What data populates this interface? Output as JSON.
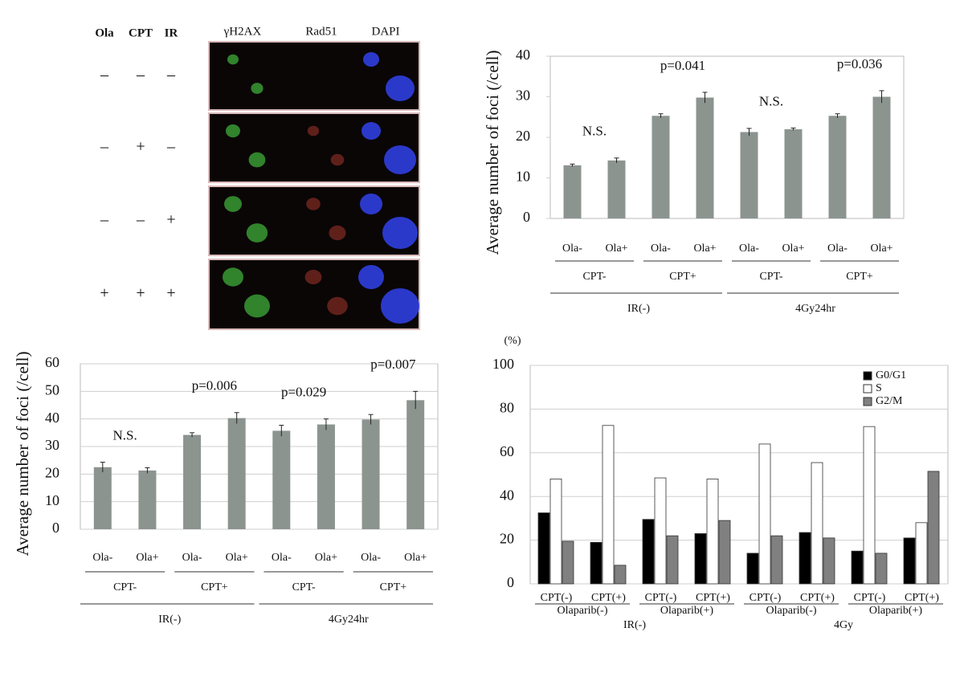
{
  "panel_a": {
    "treatment_headers": [
      "Ola",
      "CPT",
      "IR"
    ],
    "channel_headers": [
      "γH2AX",
      "Rad51",
      "DAPI"
    ],
    "rows": [
      [
        "–",
        "–",
        "–"
      ],
      [
        "–",
        "+",
        "–"
      ],
      [
        "–",
        "–",
        "+"
      ],
      [
        "+",
        "+",
        "+"
      ]
    ]
  },
  "chart_data": [
    {
      "type": "bar",
      "y_label": "Average number of foci (/cell)",
      "color": "#8c9490",
      "categories": [
        "Ola-",
        "Ola+",
        "Ola-",
        "Ola+",
        "Ola-",
        "Ola+",
        "Ola-",
        "Ola+"
      ],
      "values": [
        13.1,
        14.3,
        25.3,
        29.8,
        21.3,
        22.0,
        25.3,
        30.0
      ],
      "errors": [
        0.3,
        0.6,
        0.5,
        1.3,
        0.9,
        0.3,
        0.5,
        1.5
      ],
      "groups": [
        "CPT-",
        "CPT+",
        "CPT-",
        "CPT+"
      ],
      "supergroups": [
        "IR(-)",
        "4Gy24hr"
      ],
      "annotations": [
        "N.S.",
        "p=0.041",
        "N.S.",
        "p=0.036"
      ],
      "ylim": [
        0,
        40
      ],
      "yticks": [
        0,
        10,
        20,
        30,
        40
      ],
      "grid": false
    },
    {
      "type": "bar",
      "y_label": "Average number of foci (/cell)",
      "color": "#8c9490",
      "categories": [
        "Ola-",
        "Ola+",
        "Ola-",
        "Ola+",
        "Ola-",
        "Ola+",
        "Ola-",
        "Ola+"
      ],
      "values": [
        22.5,
        21.3,
        34.2,
        40.3,
        35.7,
        38.0,
        39.8,
        46.8
      ],
      "errors": [
        1.8,
        1.0,
        0.8,
        2.0,
        2.0,
        2.0,
        1.8,
        3.2
      ],
      "groups": [
        "CPT-",
        "CPT+",
        "CPT-",
        "CPT+"
      ],
      "supergroups": [
        "IR(-)",
        "4Gy24hr"
      ],
      "annotations": [
        "N.S.",
        "p=0.006",
        "p=0.029",
        "p=0.007"
      ],
      "ylim": [
        0,
        60
      ],
      "yticks": [
        0,
        10,
        20,
        30,
        40,
        50,
        60
      ],
      "grid": true
    },
    {
      "type": "bar",
      "y_label": "(%)",
      "categories": [
        "CPT(-)",
        "CPT(+)",
        "CPT(-)",
        "CPT(+)",
        "CPT(-)",
        "CPT(+)",
        "CPT(-)",
        "CPT(+)"
      ],
      "groups": [
        "Olaparib(-)",
        "Olaparib(+)",
        "Olaparib(-)",
        "Olaparib(+)"
      ],
      "supergroups": [
        "IR(-)",
        "4Gy"
      ],
      "series": [
        {
          "name": "G0/G1",
          "color": "#000000",
          "values": [
            32.5,
            19,
            29.5,
            23,
            14,
            23.5,
            15,
            21
          ]
        },
        {
          "name": "S",
          "color": "#ffffff",
          "values": [
            48,
            72.5,
            48.5,
            48,
            64,
            55.5,
            72,
            28
          ]
        },
        {
          "name": "G2/M",
          "color": "#808080",
          "values": [
            19.5,
            8.5,
            22,
            29,
            22,
            21,
            14,
            51.5
          ]
        }
      ],
      "ylim": [
        0,
        100
      ],
      "yticks": [
        0,
        20,
        40,
        60,
        80,
        100
      ],
      "grid": true,
      "legend": "upper right"
    }
  ]
}
